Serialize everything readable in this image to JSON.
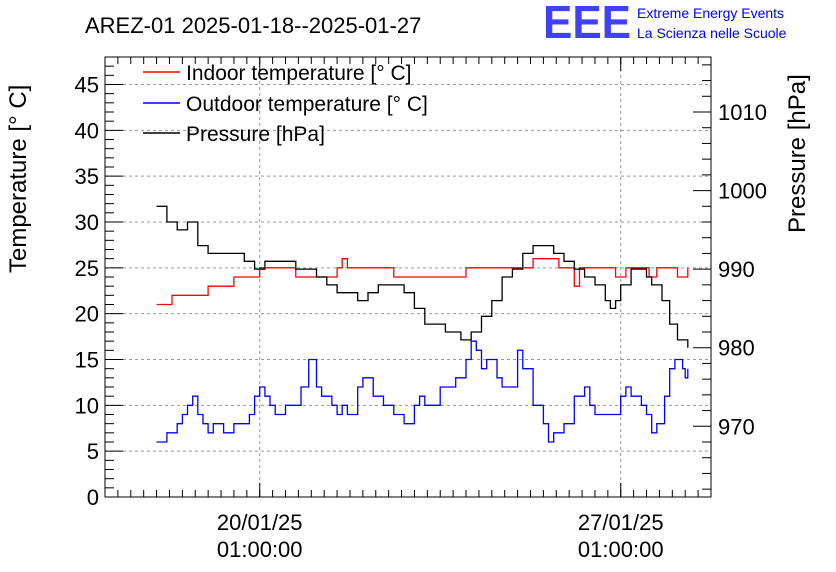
{
  "chart_data": {
    "type": "line",
    "title": "AREZ-01 2025-01-18--2025-01-27",
    "logo": {
      "text": "EEE",
      "line1": "Extreme Energy Events",
      "line2": "La Scienza nelle Scuole",
      "color": "#0000ff"
    },
    "x_ticks": [
      {
        "date": "20/01/25",
        "time": "01:00:00",
        "day": 1.5
      },
      {
        "date": "27/01/25",
        "time": "01:00:00",
        "day": 8.5
      }
    ],
    "xlim_days": [
      -1.5,
      10.25
    ],
    "y_left": {
      "label": "Temperature [° C]",
      "lim": [
        0,
        48
      ],
      "ticks": [
        0,
        5,
        10,
        15,
        20,
        25,
        30,
        35,
        40,
        45
      ]
    },
    "y_right": {
      "label": "Pressure [hPa]",
      "lim": [
        961,
        1017
      ],
      "ticks": [
        970,
        980,
        990,
        1000,
        1010
      ]
    },
    "grid": true,
    "legend_position": "top-left",
    "series": [
      {
        "name": "Indoor temperature [° C]",
        "axis": "left",
        "color": "#ff0000",
        "points": [
          [
            -0.5,
            21
          ],
          [
            -0.25,
            21
          ],
          [
            -0.2,
            22
          ],
          [
            0.1,
            22
          ],
          [
            0.3,
            22
          ],
          [
            0.5,
            23
          ],
          [
            0.8,
            23
          ],
          [
            1.0,
            24
          ],
          [
            1.2,
            24
          ],
          [
            1.5,
            25
          ],
          [
            2.0,
            25
          ],
          [
            2.2,
            24
          ],
          [
            2.5,
            24
          ],
          [
            2.8,
            24
          ],
          [
            3.0,
            25
          ],
          [
            3.1,
            26
          ],
          [
            3.2,
            25
          ],
          [
            3.5,
            25
          ],
          [
            3.8,
            25
          ],
          [
            4.1,
            24
          ],
          [
            4.5,
            24
          ],
          [
            5.0,
            24
          ],
          [
            5.5,
            25
          ],
          [
            6.0,
            25
          ],
          [
            6.7,
            25
          ],
          [
            6.8,
            26
          ],
          [
            7.0,
            26
          ],
          [
            7.3,
            25
          ],
          [
            7.5,
            25
          ],
          [
            7.6,
            23
          ],
          [
            7.7,
            25
          ],
          [
            8.0,
            25
          ],
          [
            8.4,
            24
          ],
          [
            8.6,
            25
          ],
          [
            8.9,
            25
          ],
          [
            9.05,
            24
          ],
          [
            9.2,
            25
          ],
          [
            9.4,
            25
          ],
          [
            9.6,
            24
          ],
          [
            9.75,
            24
          ],
          [
            9.8,
            25
          ]
        ]
      },
      {
        "name": "Outdoor temperature [° C]",
        "axis": "left",
        "color": "#0000ff",
        "points": [
          [
            -0.5,
            6
          ],
          [
            -0.3,
            7
          ],
          [
            -0.1,
            8
          ],
          [
            0.0,
            9
          ],
          [
            0.1,
            10
          ],
          [
            0.2,
            11
          ],
          [
            0.3,
            9
          ],
          [
            0.4,
            8
          ],
          [
            0.5,
            7
          ],
          [
            0.6,
            8
          ],
          [
            0.8,
            7
          ],
          [
            1.0,
            8
          ],
          [
            1.2,
            8
          ],
          [
            1.3,
            9
          ],
          [
            1.4,
            11
          ],
          [
            1.5,
            12
          ],
          [
            1.6,
            11
          ],
          [
            1.7,
            10
          ],
          [
            1.8,
            9
          ],
          [
            2.0,
            10
          ],
          [
            2.2,
            10
          ],
          [
            2.3,
            12
          ],
          [
            2.45,
            15
          ],
          [
            2.6,
            12
          ],
          [
            2.7,
            11
          ],
          [
            2.9,
            10
          ],
          [
            3.0,
            9
          ],
          [
            3.1,
            10
          ],
          [
            3.2,
            9
          ],
          [
            3.4,
            12
          ],
          [
            3.5,
            13
          ],
          [
            3.7,
            11
          ],
          [
            3.9,
            10
          ],
          [
            4.1,
            9
          ],
          [
            4.3,
            8
          ],
          [
            4.5,
            10
          ],
          [
            4.6,
            11
          ],
          [
            4.7,
            10
          ],
          [
            4.9,
            10
          ],
          [
            5.0,
            12
          ],
          [
            5.2,
            12
          ],
          [
            5.3,
            13
          ],
          [
            5.5,
            15
          ],
          [
            5.6,
            17
          ],
          [
            5.7,
            16
          ],
          [
            5.8,
            14
          ],
          [
            5.9,
            15
          ],
          [
            6.1,
            13
          ],
          [
            6.2,
            12
          ],
          [
            6.5,
            16
          ],
          [
            6.6,
            14
          ],
          [
            6.8,
            10
          ],
          [
            7.0,
            8
          ],
          [
            7.1,
            6
          ],
          [
            7.2,
            7
          ],
          [
            7.4,
            8
          ],
          [
            7.6,
            11
          ],
          [
            7.8,
            12
          ],
          [
            7.9,
            10
          ],
          [
            8.0,
            9
          ],
          [
            8.4,
            9
          ],
          [
            8.5,
            11
          ],
          [
            8.6,
            12
          ],
          [
            8.7,
            11
          ],
          [
            8.9,
            10
          ],
          [
            9.0,
            9
          ],
          [
            9.1,
            7
          ],
          [
            9.2,
            8
          ],
          [
            9.35,
            11
          ],
          [
            9.45,
            14
          ],
          [
            9.55,
            15
          ],
          [
            9.7,
            14
          ],
          [
            9.75,
            13
          ],
          [
            9.8,
            14
          ]
        ]
      },
      {
        "name": "Pressure [hPa]",
        "axis": "right",
        "color": "#000000",
        "points": [
          [
            -0.5,
            998
          ],
          [
            -0.3,
            996
          ],
          [
            -0.1,
            995
          ],
          [
            0.1,
            996
          ],
          [
            0.3,
            993
          ],
          [
            0.5,
            992
          ],
          [
            0.7,
            992
          ],
          [
            1.0,
            992
          ],
          [
            1.2,
            991
          ],
          [
            1.4,
            990
          ],
          [
            1.6,
            991
          ],
          [
            1.8,
            991
          ],
          [
            2.0,
            991
          ],
          [
            2.2,
            990
          ],
          [
            2.4,
            990
          ],
          [
            2.6,
            989
          ],
          [
            2.8,
            988
          ],
          [
            3.0,
            987
          ],
          [
            3.2,
            987
          ],
          [
            3.4,
            986
          ],
          [
            3.6,
            987
          ],
          [
            3.8,
            988
          ],
          [
            4.0,
            988
          ],
          [
            4.3,
            987
          ],
          [
            4.5,
            985
          ],
          [
            4.7,
            983
          ],
          [
            4.9,
            983
          ],
          [
            5.1,
            982
          ],
          [
            5.4,
            981
          ],
          [
            5.6,
            982
          ],
          [
            5.8,
            984
          ],
          [
            6.0,
            986
          ],
          [
            6.2,
            989
          ],
          [
            6.4,
            990
          ],
          [
            6.6,
            992
          ],
          [
            6.8,
            993
          ],
          [
            7.0,
            993
          ],
          [
            7.2,
            992
          ],
          [
            7.4,
            991
          ],
          [
            7.6,
            990
          ],
          [
            7.8,
            989
          ],
          [
            8.0,
            988
          ],
          [
            8.2,
            986
          ],
          [
            8.3,
            985
          ],
          [
            8.4,
            986
          ],
          [
            8.5,
            988
          ],
          [
            8.7,
            990
          ],
          [
            8.9,
            990
          ],
          [
            9.0,
            989
          ],
          [
            9.1,
            988
          ],
          [
            9.3,
            986
          ],
          [
            9.45,
            983
          ],
          [
            9.6,
            981
          ],
          [
            9.8,
            980
          ]
        ]
      }
    ]
  }
}
